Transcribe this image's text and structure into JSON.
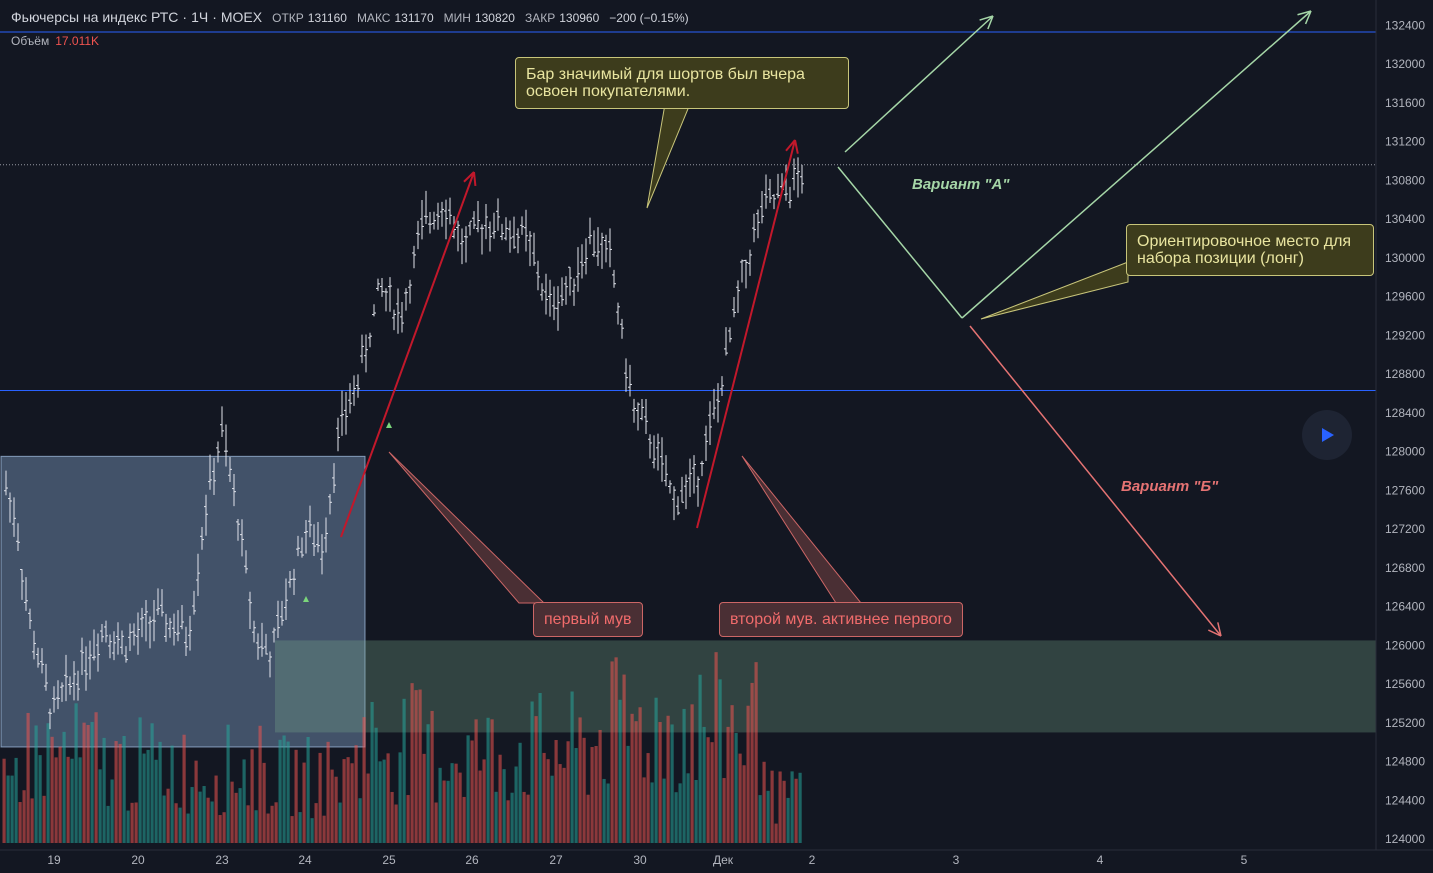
{
  "header": {
    "symbol": "Фьючерсы на индекс РТС",
    "sep1": "·",
    "interval": "1Ч",
    "sep2": "·",
    "exchange": "MOEX",
    "open_label": "ОТКР",
    "open": "131160",
    "high_label": "МАКС",
    "high": "131170",
    "low_label": "МИН",
    "low": "130820",
    "close_label": "ЗАКР",
    "close": "130960",
    "change": "−200 (−0.15%)"
  },
  "volume": {
    "label": "Объём",
    "value": "17.011K"
  },
  "annotations": {
    "note_top": "Бар значимый для шортов был вчера освоен покупателями.",
    "note_right": "Ориентировочное место для набора позиции (лонг)",
    "first_move": "первый мув",
    "second_move": "второй мув. активнее первого",
    "variant_a": "Вариант \"А\"",
    "variant_b": "Вариант \"Б\""
  },
  "colors": {
    "background": "#131722",
    "bars": "#e0e3eb",
    "volume_up": "#26a69a",
    "volume_down": "#ef5350",
    "hline": "#2962ff",
    "green_arrow": "#a5d6a7",
    "red_arrow": "#e57373",
    "move_arrow": "#c2182b"
  },
  "chart_data": {
    "type": "ohlc",
    "y_axis": {
      "ticks": [
        "132400",
        "132000",
        "131600",
        "131200",
        "130800",
        "130400",
        "130000",
        "129600",
        "129200",
        "128800",
        "128400",
        "128000",
        "127600",
        "127200",
        "126800",
        "126400",
        "126000",
        "125600",
        "125200",
        "124800",
        "124400",
        "124000"
      ],
      "range": [
        123900,
        132400
      ]
    },
    "x_axis": {
      "ticks": [
        "19",
        "20",
        "23",
        "24",
        "25",
        "26",
        "27",
        "30",
        "Дек",
        "2",
        "3",
        "4",
        "5"
      ]
    },
    "price_markers": [
      {
        "label": "132330",
        "value": 132330,
        "style": "hline"
      },
      {
        "label": "130960",
        "value": 130960,
        "style": "last"
      },
      {
        "label": "128630",
        "value": 128630,
        "style": "hline"
      }
    ],
    "zones": [
      {
        "name": "consolidation",
        "from_tick": "19",
        "to_tick": "25",
        "low": 124950,
        "high": 127950
      },
      {
        "name": "volume-zone",
        "from_tick": "24",
        "to_tick": "5",
        "low": 125100,
        "high": 126050
      }
    ],
    "price_path": [
      [
        "19",
        127700
      ],
      [
        "19",
        127300
      ],
      [
        "19",
        126300
      ],
      [
        "19",
        125800
      ],
      [
        "19",
        125300
      ],
      [
        "20",
        125900
      ],
      [
        "20",
        126200
      ],
      [
        "20",
        126000
      ],
      [
        "20",
        126100
      ],
      [
        "20",
        126300
      ],
      [
        "23",
        126200
      ],
      [
        "23",
        126100
      ],
      [
        "23",
        127400
      ],
      [
        "23",
        128200
      ],
      [
        "23",
        127300
      ],
      [
        "24",
        126100
      ],
      [
        "24",
        125900
      ],
      [
        "24",
        126600
      ],
      [
        "24",
        127200
      ],
      [
        "24",
        127000
      ],
      [
        "25",
        128200
      ],
      [
        "25",
        128800
      ],
      [
        "25",
        129700
      ],
      [
        "25",
        129400
      ],
      [
        "26",
        130300
      ],
      [
        "26",
        130600
      ],
      [
        "26",
        130100
      ],
      [
        "26",
        130400
      ],
      [
        "27",
        130300
      ],
      [
        "27",
        130200
      ],
      [
        "27",
        129500
      ],
      [
        "27",
        129700
      ],
      [
        "30",
        130200
      ],
      [
        "30",
        130000
      ],
      [
        "30",
        128500
      ],
      [
        "30",
        128100
      ],
      [
        "Дек",
        127500
      ],
      [
        "Дек",
        127700
      ],
      [
        "Дек",
        128500
      ],
      [
        "Дек",
        129700
      ],
      [
        "2",
        130500
      ],
      [
        "2",
        130800
      ],
      [
        "2",
        131100
      ],
      [
        "2",
        130960
      ]
    ],
    "volume_levels": [
      [
        "19",
        0.38
      ],
      [
        "19",
        0.62
      ],
      [
        "20",
        0.42
      ],
      [
        "20",
        0.36
      ],
      [
        "20",
        0.55
      ],
      [
        "23",
        0.4
      ],
      [
        "23",
        0.65
      ],
      [
        "23",
        0.52
      ],
      [
        "24",
        0.58
      ],
      [
        "24",
        0.47
      ],
      [
        "25",
        0.96
      ],
      [
        "25",
        0.7
      ],
      [
        "26",
        0.8
      ],
      [
        "26",
        0.63
      ],
      [
        "27",
        0.45
      ],
      [
        "27",
        0.66
      ],
      [
        "30",
        0.58
      ],
      [
        "30",
        0.81
      ],
      [
        "Дек",
        0.7
      ],
      [
        "Дек",
        0.83
      ],
      [
        "2",
        0.59
      ],
      [
        "2",
        0.32
      ]
    ],
    "legend": "none",
    "grid": false
  }
}
